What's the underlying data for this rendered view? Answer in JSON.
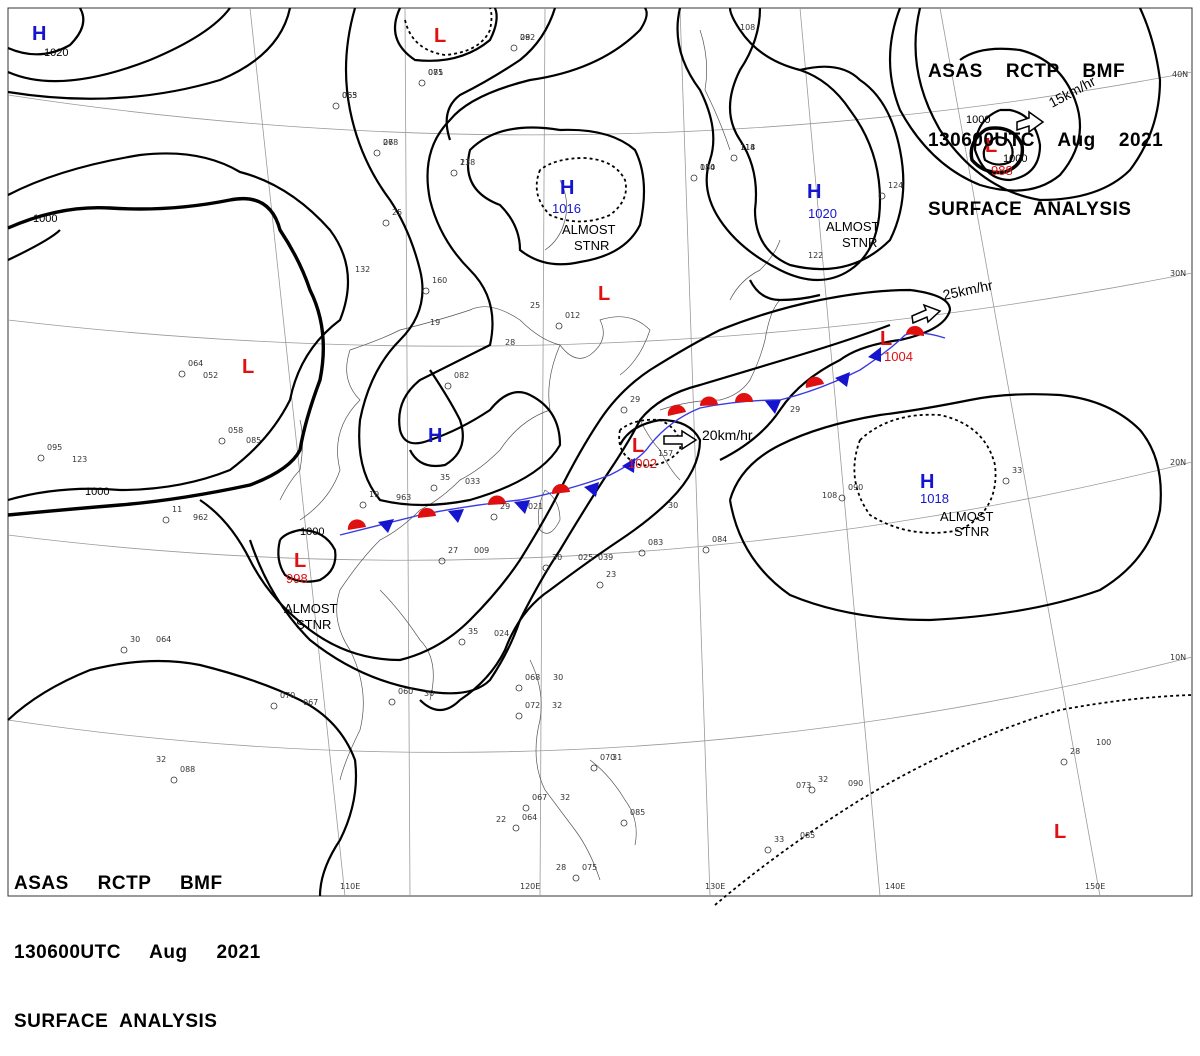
{
  "header_top": {
    "line1": "ASAS    RCTP    BMF",
    "line2": "130600UTC    Aug    2021",
    "line3": "SURFACE  ANALYSIS"
  },
  "header_bottom": {
    "line1": "ASAS     RCTP     BMF",
    "line2": "130600UTC     Aug     2021",
    "line3": "SURFACE  ANALYSIS"
  },
  "lat_labels": [
    "40N",
    "30N",
    "20N",
    "10N"
  ],
  "lon_labels": [
    "110E",
    "120E",
    "130E",
    "140E",
    "150E"
  ],
  "isobar_labels": [
    "1020",
    "1000",
    "1000",
    "1000",
    "1000",
    "1000"
  ],
  "centers": [
    {
      "type": "H",
      "pressure": "",
      "color": "#1515d0"
    },
    {
      "type": "L",
      "pressure": "",
      "color": "#e01010"
    },
    {
      "type": "H",
      "pressure": "1016",
      "color": "#1515d0"
    },
    {
      "type": "H",
      "pressure": "1020",
      "color": "#1515d0"
    },
    {
      "type": "L",
      "pressure": "988",
      "color": "#e01010"
    },
    {
      "type": "L",
      "pressure": "",
      "color": "#e01010"
    },
    {
      "type": "L",
      "pressure": "",
      "color": "#e01010"
    },
    {
      "type": "H",
      "pressure": "",
      "color": "#1515d0"
    },
    {
      "type": "L",
      "pressure": "1004",
      "color": "#e01010"
    },
    {
      "type": "L",
      "pressure": "1002",
      "color": "#e01010"
    },
    {
      "type": "H",
      "pressure": "1018",
      "color": "#1515d0"
    },
    {
      "type": "L",
      "pressure": "998",
      "color": "#e01010"
    },
    {
      "type": "L",
      "pressure": "",
      "color": "#e01010"
    }
  ],
  "annotations": {
    "stnr_word_1": "ALMOST",
    "stnr_word_2": "STNR",
    "speed_15": "15km/hr",
    "speed_25": "25km/hr",
    "speed_20": "20km/hr"
  },
  "station_labels": [
    "29",
    "071",
    "065",
    "26",
    "23",
    "084",
    "114",
    "25",
    "132",
    "160",
    "19",
    "082",
    "28",
    "012",
    "25",
    "064",
    "052",
    "058",
    "085",
    "095",
    "123",
    "11",
    "962",
    "19",
    "963",
    "29",
    "021",
    "35",
    "033",
    "27",
    "009",
    "30",
    "025",
    "23",
    "039",
    "35",
    "024",
    "30",
    "064",
    "070",
    "067",
    "060",
    "30",
    "068",
    "30",
    "072",
    "32",
    "070",
    "31",
    "067",
    "32",
    "085",
    "22",
    "064",
    "28",
    "075",
    "32",
    "088",
    "073",
    "32",
    "090",
    "33",
    "085",
    "28",
    "100",
    "33",
    "108",
    "090",
    "29",
    "084",
    "30",
    "083",
    "157",
    "29",
    "122",
    "124",
    "108",
    "082",
    "085",
    "063",
    "078",
    "178",
    "150",
    "118"
  ],
  "colors": {
    "high": "#1515d0",
    "low": "#e01010",
    "warm_front": "#e01010",
    "cold_front": "#1515d0",
    "grid": "#9a9a9a"
  }
}
